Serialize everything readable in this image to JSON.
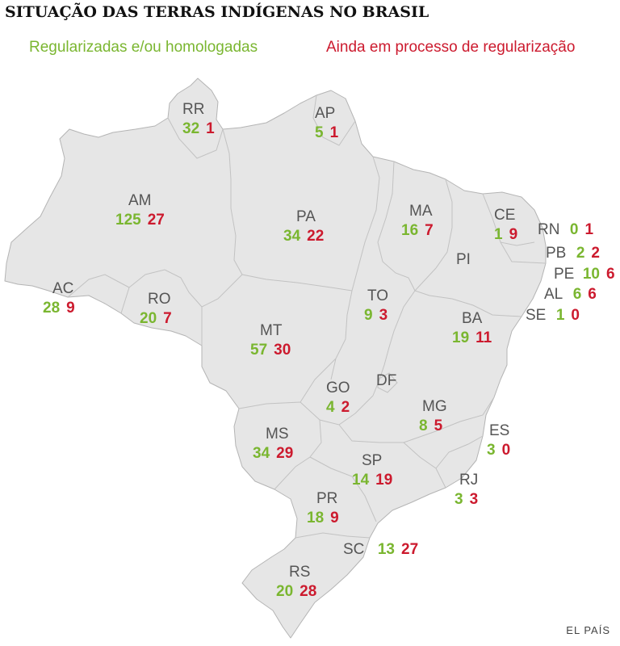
{
  "title": "SITUAÇÃO DAS TERRAS INDÍGENAS NO BRASIL",
  "legend": {
    "regularized": "Regularizadas e/ou homologadas",
    "in_process": "Ainda em processo de regularização"
  },
  "colors": {
    "regularized": "#7ab630",
    "in_process": "#cc1a2e",
    "land": "#e6e6e6"
  },
  "states": [
    {
      "code": "RR",
      "regularized": "32",
      "in_process": "1"
    },
    {
      "code": "AP",
      "regularized": "5",
      "in_process": "1"
    },
    {
      "code": "AM",
      "regularized": "125",
      "in_process": "27"
    },
    {
      "code": "PA",
      "regularized": "34",
      "in_process": "22"
    },
    {
      "code": "MA",
      "regularized": "16",
      "in_process": "7"
    },
    {
      "code": "CE",
      "regularized": "1",
      "in_process": "9"
    },
    {
      "code": "RN",
      "regularized": "0",
      "in_process": "1"
    },
    {
      "code": "PB",
      "regularized": "2",
      "in_process": "2"
    },
    {
      "code": "PE",
      "regularized": "10",
      "in_process": "6"
    },
    {
      "code": "PI",
      "regularized": "",
      "in_process": ""
    },
    {
      "code": "AL",
      "regularized": "6",
      "in_process": "6"
    },
    {
      "code": "SE",
      "regularized": "1",
      "in_process": "0"
    },
    {
      "code": "AC",
      "regularized": "28",
      "in_process": "9"
    },
    {
      "code": "RO",
      "regularized": "20",
      "in_process": "7"
    },
    {
      "code": "TO",
      "regularized": "9",
      "in_process": "3"
    },
    {
      "code": "BA",
      "regularized": "19",
      "in_process": "11"
    },
    {
      "code": "MT",
      "regularized": "57",
      "in_process": "30"
    },
    {
      "code": "GO",
      "regularized": "4",
      "in_process": "2"
    },
    {
      "code": "DF",
      "regularized": "",
      "in_process": ""
    },
    {
      "code": "MG",
      "regularized": "8",
      "in_process": "5"
    },
    {
      "code": "ES",
      "regularized": "3",
      "in_process": "0"
    },
    {
      "code": "MS",
      "regularized": "34",
      "in_process": "29"
    },
    {
      "code": "SP",
      "regularized": "14",
      "in_process": "19"
    },
    {
      "code": "RJ",
      "regularized": "3",
      "in_process": "3"
    },
    {
      "code": "PR",
      "regularized": "18",
      "in_process": "9"
    },
    {
      "code": "SC",
      "regularized": "13",
      "in_process": "27"
    },
    {
      "code": "RS",
      "regularized": "20",
      "in_process": "28"
    }
  ],
  "credit": "EL PAÍS"
}
